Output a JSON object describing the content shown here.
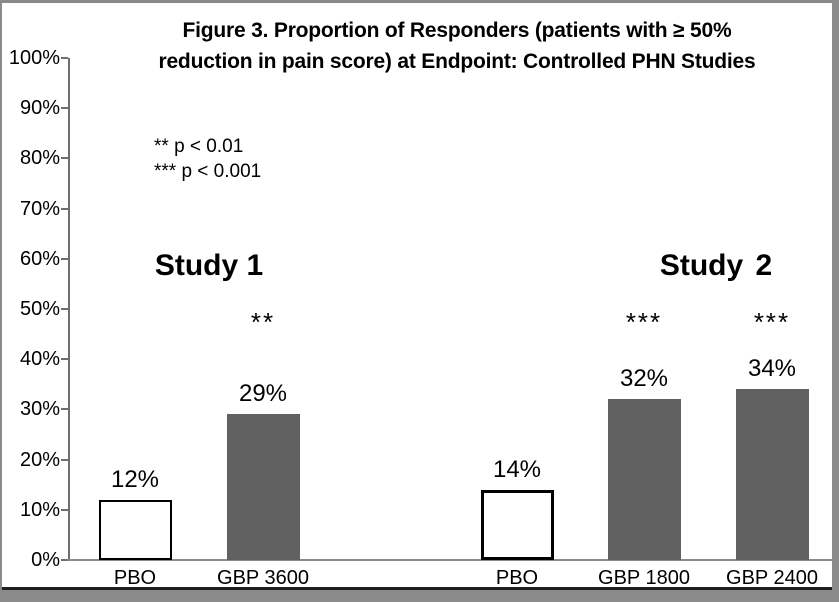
{
  "chart_data": {
    "type": "bar",
    "title": "Figure 3. Proportion of Responders (patients with ≥ 50% reduction in pain score) at Endpoint: Controlled PHN Studies",
    "title_lines": [
      "Figure 3. Proportion of Responders (patients with ≥ 50%",
      "reduction in pain score) at Endpoint: Controlled PHN Studies"
    ],
    "annotations": [
      "** p < 0.01",
      "*** p < 0.001"
    ],
    "ylabel": "",
    "xlabel": "",
    "ylim": [
      0,
      100
    ],
    "ytick_labels": [
      "0%",
      "10%",
      "20%",
      "30%",
      "40%",
      "50%",
      "60%",
      "70%",
      "80%",
      "90%",
      "100%"
    ],
    "grid": "off",
    "legend_position": "none",
    "groups": [
      {
        "label": "Study 1"
      },
      {
        "label": "Study 2"
      }
    ],
    "bars": [
      {
        "group": "Study 1",
        "category": "PBO",
        "value": 12,
        "label": "12%",
        "style": "outline",
        "significance": ""
      },
      {
        "group": "Study 1",
        "category": "GBP 3600",
        "value": 29,
        "label": "29%",
        "style": "filled",
        "significance": "**"
      },
      {
        "group": "Study 2",
        "category": "PBO",
        "value": 14,
        "label": "14%",
        "style": "outline",
        "significance": ""
      },
      {
        "group": "Study 2",
        "category": "GBP 1800",
        "value": 32,
        "label": "32%",
        "style": "filled",
        "significance": "***"
      },
      {
        "group": "Study 2",
        "category": "GBP 2400",
        "value": 34,
        "label": "34%",
        "style": "filled",
        "significance": "***"
      }
    ],
    "colors": {
      "filled_bar": "#616161",
      "outline_bar_fill": "#ffffff",
      "outline_bar_border": "#000000",
      "frame": "#8a8a8a",
      "axis": "#6e6e6e"
    }
  }
}
